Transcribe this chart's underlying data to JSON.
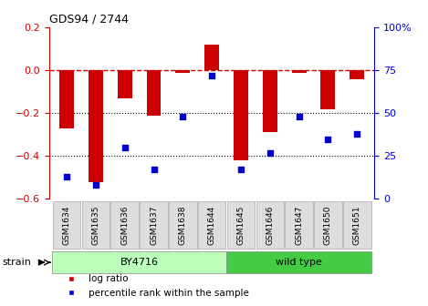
{
  "title": "GDS94 / 2744",
  "categories": [
    "GSM1634",
    "GSM1635",
    "GSM1636",
    "GSM1637",
    "GSM1638",
    "GSM1644",
    "GSM1645",
    "GSM1646",
    "GSM1647",
    "GSM1650",
    "GSM1651"
  ],
  "log_ratio": [
    -0.27,
    -0.52,
    -0.13,
    -0.21,
    -0.01,
    0.12,
    -0.42,
    -0.29,
    -0.01,
    -0.18,
    -0.04
  ],
  "percentile_rank": [
    13,
    8,
    30,
    17,
    48,
    72,
    17,
    27,
    48,
    35,
    38
  ],
  "bar_color": "#cc0000",
  "dot_color": "#0000cc",
  "dashed_color": "#cc0000",
  "left_yticks": [
    0.2,
    0.0,
    -0.2,
    -0.4,
    -0.6
  ],
  "right_yticks": [
    100,
    75,
    50,
    25,
    0
  ],
  "strain_groups": [
    {
      "label": "BY4716",
      "indices": [
        0,
        1,
        2,
        3,
        4,
        5
      ],
      "color": "#bbffbb"
    },
    {
      "label": "wild type",
      "indices": [
        6,
        7,
        8,
        9,
        10
      ],
      "color": "#44cc44"
    }
  ],
  "legend_log_ratio": "log ratio",
  "legend_percentile": "percentile rank within the sample",
  "strain_label": "strain",
  "bar_width": 0.5,
  "tick_bg_color": "#dddddd",
  "tick_border_color": "#aaaaaa"
}
